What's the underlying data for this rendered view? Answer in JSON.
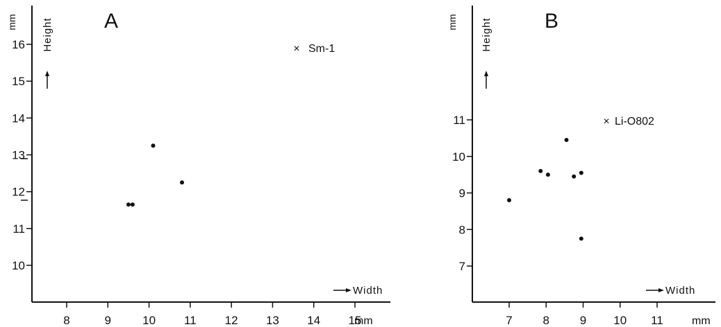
{
  "chart_data": [
    {
      "type": "scatter",
      "panel_label": "A",
      "xlabel": "Width",
      "ylabel": "Height",
      "x_unit": "mm",
      "y_unit": "mm",
      "xlim": [
        7.1,
        15.9
      ],
      "ylim": [
        9.0,
        16.9
      ],
      "x_ticks": [
        8,
        9,
        10,
        11,
        12,
        13,
        14,
        15
      ],
      "y_ticks": [
        10,
        11,
        12,
        13,
        14,
        15,
        16
      ],
      "grid": false,
      "points": [
        {
          "x": 9.5,
          "y": 11.65
        },
        {
          "x": 9.6,
          "y": 11.65
        },
        {
          "x": 10.1,
          "y": 13.25
        },
        {
          "x": 10.8,
          "y": 12.25
        }
      ],
      "reference_point": {
        "label": "Sm-1",
        "x": 14.0,
        "y": 16.0,
        "marker": "×"
      }
    },
    {
      "type": "scatter",
      "panel_label": "B",
      "xlabel": "Width",
      "ylabel": "Height",
      "x_unit": "mm",
      "y_unit": "mm",
      "xlim": [
        6.1,
        12.0
      ],
      "ylim": [
        6.0,
        13.0
      ],
      "x_ticks": [
        7,
        8,
        9,
        10,
        11
      ],
      "y_ticks": [
        7,
        8,
        9,
        10,
        11
      ],
      "grid": false,
      "points": [
        {
          "x": 7.0,
          "y": 8.8
        },
        {
          "x": 7.85,
          "y": 9.6
        },
        {
          "x": 8.05,
          "y": 9.5
        },
        {
          "x": 8.55,
          "y": 10.45
        },
        {
          "x": 8.75,
          "y": 9.45
        },
        {
          "x": 8.95,
          "y": 9.55
        },
        {
          "x": 8.95,
          "y": 7.75
        }
      ],
      "reference_point": {
        "label": "Li-O802",
        "x": 9.55,
        "y": 11.0,
        "marker": "×"
      }
    }
  ]
}
